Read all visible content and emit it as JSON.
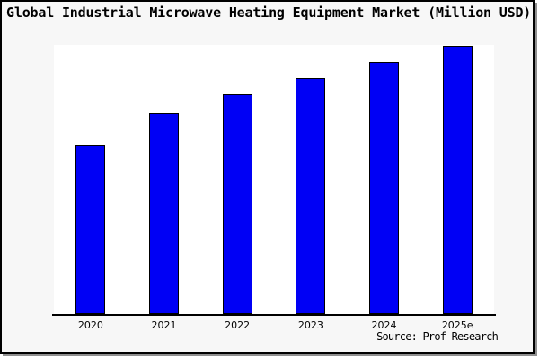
{
  "page": {
    "background_color": "#f7f7f7",
    "plot_background_color": "#ffffff",
    "border_color": "#000000",
    "shadow_color": "#8f8f8f"
  },
  "chart_data": {
    "type": "bar",
    "title": "Global Industrial Microwave Heating Equipment Market (Million USD)",
    "categories": [
      "2020",
      "2021",
      "2022",
      "2023",
      "2024",
      "2025e"
    ],
    "values": [
      63,
      75,
      82,
      88,
      94,
      100
    ],
    "value_scale": "relative height, percent of tallest bar (no y-axis ticks or value labels shown in image)",
    "xlabel": "",
    "ylabel": "",
    "ylim_relative": [
      0,
      100
    ],
    "grid": false,
    "legend": "none",
    "y_axis_visible": false,
    "bar_color": "#0000f5",
    "bar_edge_color": "#000000",
    "source_note": "Source: Prof Research"
  }
}
